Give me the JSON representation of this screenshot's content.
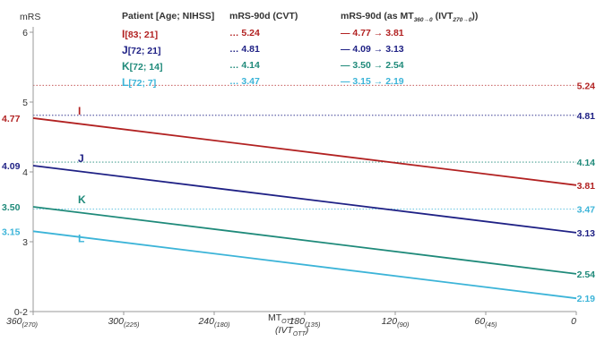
{
  "chart_data": {
    "type": "line",
    "ylabel": "mRS",
    "xlabel_main": "MT",
    "xlabel_main_sub": "OTT",
    "xlabel_paren": "(IVT",
    "xlabel_paren_sub": "OTT",
    "xlabel_paren_close": ")",
    "xlim": [
      360,
      0
    ],
    "ylim": [
      2,
      6
    ],
    "y_ticks": [
      {
        "value": 6,
        "label": "6"
      },
      {
        "value": 5,
        "label": "5"
      },
      {
        "value": 4,
        "label": "4"
      },
      {
        "value": 3,
        "label": "3"
      },
      {
        "value": 2,
        "label": "0-2"
      }
    ],
    "x_ticks": [
      {
        "value": 360,
        "main": "360",
        "sub": "(270)"
      },
      {
        "value": 300,
        "main": "300",
        "sub": "(225)"
      },
      {
        "value": 240,
        "main": "240",
        "sub": "(180)"
      },
      {
        "value": 180,
        "main": "180",
        "sub": "(135)"
      },
      {
        "value": 120,
        "main": "120",
        "sub": "(90)"
      },
      {
        "value": 60,
        "main": "60",
        "sub": "(45)"
      },
      {
        "value": 0,
        "main": "0",
        "sub": ""
      }
    ],
    "series": [
      {
        "name": "I",
        "color": "#b22222",
        "x": [
          360,
          0
        ],
        "y": [
          4.77,
          3.81
        ],
        "cvt": 5.24,
        "start_label": "4.77",
        "end_label": "3.81",
        "cvt_label": "5.24"
      },
      {
        "name": "J",
        "color": "#1f2185",
        "x": [
          360,
          0
        ],
        "y": [
          4.09,
          3.13
        ],
        "cvt": 4.81,
        "start_label": "4.09",
        "end_label": "3.13",
        "cvt_label": "4.81"
      },
      {
        "name": "K",
        "color": "#1f8a7a",
        "x": [
          360,
          0
        ],
        "y": [
          3.5,
          2.54
        ],
        "cvt": 4.14,
        "start_label": "3.50",
        "end_label": "2.54",
        "cvt_label": "4.14"
      },
      {
        "name": "L",
        "color": "#3cb4d8",
        "x": [
          360,
          0
        ],
        "y": [
          3.15,
          2.19
        ],
        "cvt": 3.47,
        "start_label": "3.15",
        "end_label": "2.19",
        "cvt_label": "3.47"
      }
    ],
    "legend": {
      "header": {
        "patient": "Patient [Age; NIHSS]",
        "cvt": "mRS-90d (CVT)",
        "mt_prefix": "mRS-90d (as MT",
        "mt_sub": "360→0",
        "mt_mid": " (IVT",
        "mt_sub2": "270→0",
        "mt_suffix": "))"
      },
      "rows": [
        {
          "letter": "I",
          "info": " [83; 21]",
          "cvt": "… 5.24",
          "mt": "— 4.77 → 3.81",
          "color": "#b22222"
        },
        {
          "letter": "J",
          "info": " [72; 21]",
          "cvt": "… 4.81",
          "mt": "— 4.09 → 3.13",
          "color": "#1f2185"
        },
        {
          "letter": "K",
          "info": " [72; 14]",
          "cvt": "… 4.14",
          "mt": "— 3.50 → 2.54",
          "color": "#1f8a7a"
        },
        {
          "letter": "L",
          "info": " [72; 7]",
          "cvt": "… 3.47",
          "mt": "— 3.15 → 2.19",
          "color": "#3cb4d8"
        }
      ]
    }
  }
}
